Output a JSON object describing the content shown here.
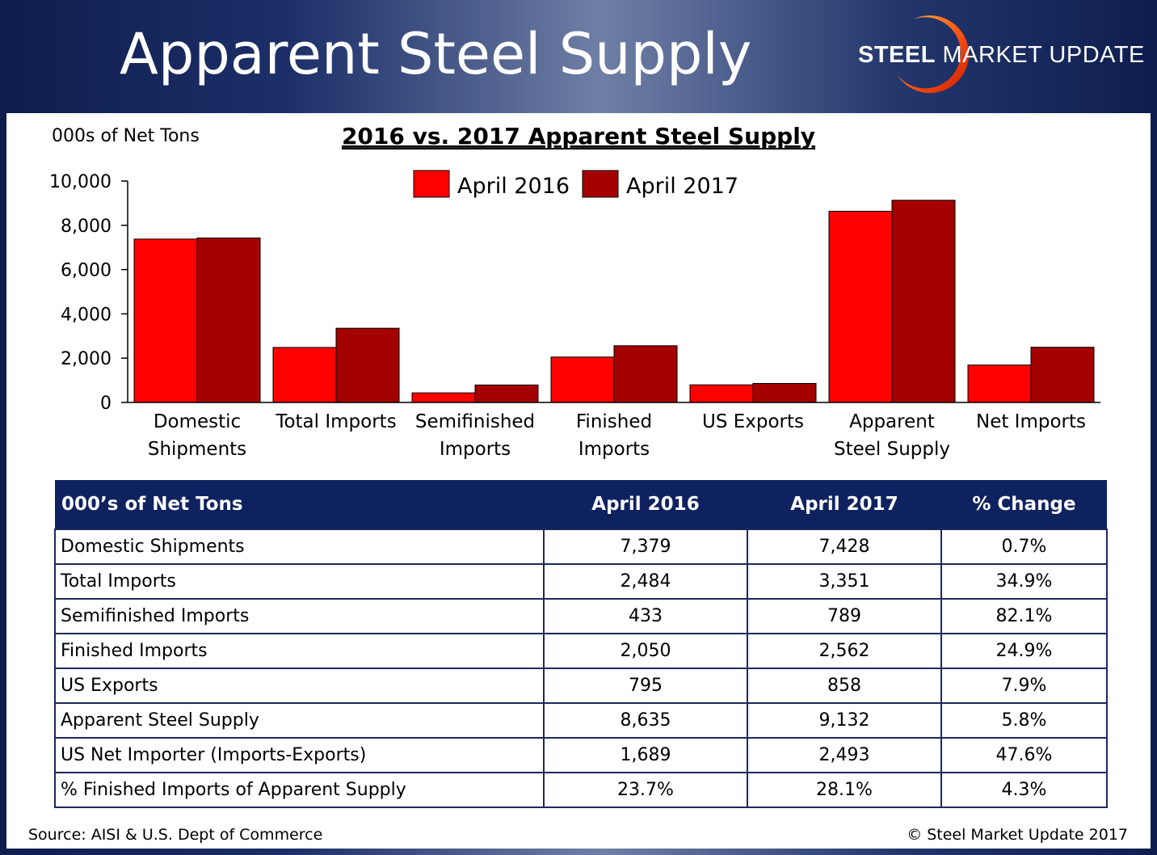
{
  "slide": {
    "title": "Apparent Steel Supply",
    "logo": {
      "bold": "STEEL",
      "rest": " MARKET UPDATE"
    },
    "source": "Source:  AISI & U.S. Dept of Commerce",
    "copyright": "©    Steel Market Update 2017"
  },
  "chart_data": {
    "type": "bar",
    "title": "2016 vs. 2017 Apparent Steel Supply",
    "ylabel": "000s of Net Tons",
    "xlabel": "",
    "ylim": [
      0,
      10000
    ],
    "yticks": [
      "0",
      "2,000",
      "4,000",
      "6,000",
      "8,000",
      "10,000"
    ],
    "grid": false,
    "legend_position": "top-center",
    "categories": [
      [
        "Domestic",
        "Shipments"
      ],
      [
        "Total Imports"
      ],
      [
        "Semifinished",
        "Imports"
      ],
      [
        "Finished",
        "Imports"
      ],
      [
        "US Exports"
      ],
      [
        "Apparent",
        "Steel Supply"
      ],
      [
        "Net Imports"
      ]
    ],
    "series": [
      {
        "name": "April 2016",
        "color": "#ff0000",
        "values": [
          7379,
          2484,
          433,
          2050,
          795,
          8635,
          1689
        ]
      },
      {
        "name": "April 2017",
        "color": "#a50000",
        "values": [
          7428,
          3351,
          789,
          2562,
          858,
          9132,
          2493
        ]
      }
    ]
  },
  "table": {
    "headers": [
      "000’s of Net Tons",
      "April 2016",
      "April 2017",
      "% Change"
    ],
    "rows": [
      [
        "Domestic Shipments",
        "7,379",
        "7,428",
        "0.7%"
      ],
      [
        "Total Imports",
        "2,484",
        "3,351",
        "34.9%"
      ],
      [
        "Semifinished Imports",
        "433",
        "789",
        "82.1%"
      ],
      [
        "Finished Imports",
        "2,050",
        "2,562",
        "24.9%"
      ],
      [
        "US Exports",
        "795",
        "858",
        "7.9%"
      ],
      [
        "Apparent Steel Supply",
        "8,635",
        "9,132",
        "5.8%"
      ],
      [
        "US Net Importer (Imports-Exports)",
        "1,689",
        "2,493",
        "47.6%"
      ],
      [
        "% Finished Imports of Apparent Supply",
        "23.7%",
        "28.1%",
        "4.3%"
      ]
    ]
  }
}
